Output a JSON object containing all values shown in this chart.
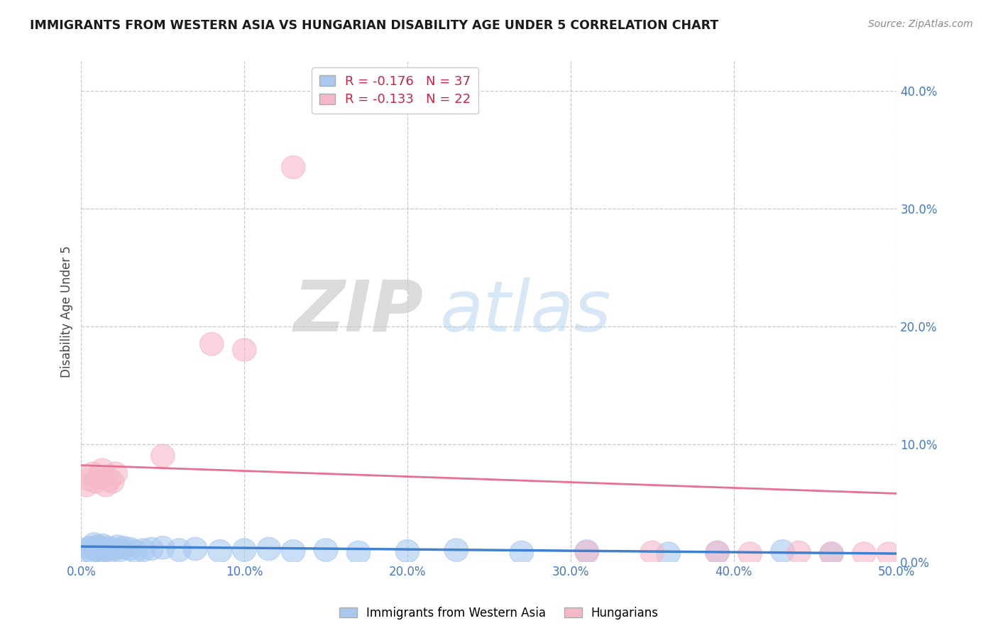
{
  "title": "IMMIGRANTS FROM WESTERN ASIA VS HUNGARIAN DISABILITY AGE UNDER 5 CORRELATION CHART",
  "source": "Source: ZipAtlas.com",
  "ylabel": "Disability Age Under 5",
  "xlim": [
    0.0,
    0.5
  ],
  "ylim": [
    0.0,
    0.425
  ],
  "xticks": [
    0.0,
    0.1,
    0.2,
    0.3,
    0.4,
    0.5
  ],
  "xticklabels": [
    "0.0%",
    "10.0%",
    "20.0%",
    "30.0%",
    "40.0%",
    "50.0%"
  ],
  "yticks_right": [
    0.0,
    0.1,
    0.2,
    0.3,
    0.4
  ],
  "yticklabels_right": [
    "0.0%",
    "10.0%",
    "20.0%",
    "30.0%",
    "40.0%"
  ],
  "blue_color": "#A8C8F0",
  "pink_color": "#F5B8C8",
  "blue_line_color": "#4080D0",
  "pink_line_color": "#E87090",
  "blue_R": -0.176,
  "blue_N": 37,
  "pink_R": -0.133,
  "pink_N": 22,
  "blue_label": "Immigrants from Western Asia",
  "pink_label": "Hungarians",
  "background_color": "#ffffff",
  "grid_color": "#c8c8c8",
  "blue_x": [
    0.003,
    0.005,
    0.007,
    0.008,
    0.009,
    0.01,
    0.011,
    0.012,
    0.013,
    0.015,
    0.016,
    0.018,
    0.02,
    0.022,
    0.024,
    0.026,
    0.03,
    0.033,
    0.038,
    0.043,
    0.05,
    0.06,
    0.07,
    0.085,
    0.1,
    0.115,
    0.13,
    0.15,
    0.17,
    0.2,
    0.23,
    0.27,
    0.31,
    0.36,
    0.39,
    0.43,
    0.46
  ],
  "blue_y": [
    0.01,
    0.012,
    0.008,
    0.015,
    0.01,
    0.013,
    0.009,
    0.011,
    0.014,
    0.01,
    0.012,
    0.009,
    0.011,
    0.013,
    0.01,
    0.012,
    0.011,
    0.009,
    0.01,
    0.011,
    0.012,
    0.01,
    0.011,
    0.009,
    0.01,
    0.011,
    0.009,
    0.01,
    0.008,
    0.009,
    0.01,
    0.008,
    0.009,
    0.007,
    0.008,
    0.009,
    0.007
  ],
  "pink_x": [
    0.003,
    0.005,
    0.007,
    0.009,
    0.011,
    0.013,
    0.015,
    0.017,
    0.019,
    0.021,
    0.05,
    0.08,
    0.1,
    0.13,
    0.31,
    0.35,
    0.39,
    0.41,
    0.44,
    0.46,
    0.48,
    0.495
  ],
  "pink_y": [
    0.065,
    0.07,
    0.075,
    0.068,
    0.072,
    0.078,
    0.065,
    0.07,
    0.068,
    0.075,
    0.09,
    0.185,
    0.18,
    0.335,
    0.008,
    0.008,
    0.008,
    0.007,
    0.008,
    0.007,
    0.007,
    0.007
  ],
  "pink_trend_start_y": 0.082,
  "pink_trend_end_y": 0.058,
  "blue_trend_start_y": 0.013,
  "blue_trend_end_y": 0.007
}
